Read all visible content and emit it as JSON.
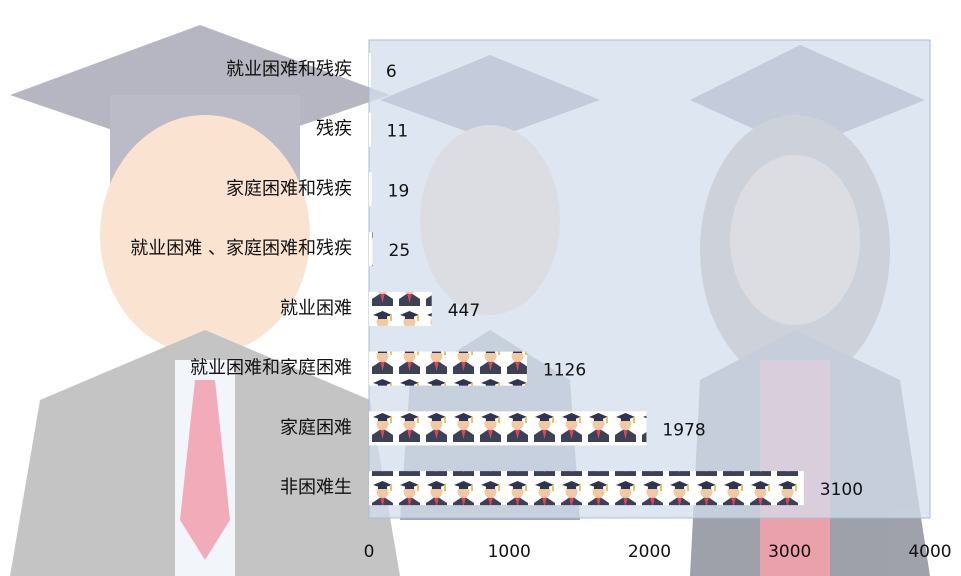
{
  "chart_data": {
    "type": "bar",
    "orientation": "horizontal",
    "categories": [
      "就业困难和残疾",
      "残疾",
      "家庭困难和残疾",
      "就业困难 、家庭困难和残疾",
      "就业困难",
      "就业困难和家庭困难",
      "家庭困难",
      "非困难生"
    ],
    "values": [
      6,
      11,
      19,
      25,
      447,
      1126,
      1978,
      3100
    ],
    "xlim": [
      0,
      4000
    ],
    "xticks": [
      0,
      1000,
      2000,
      3000,
      4000
    ],
    "grid": false
  }
}
